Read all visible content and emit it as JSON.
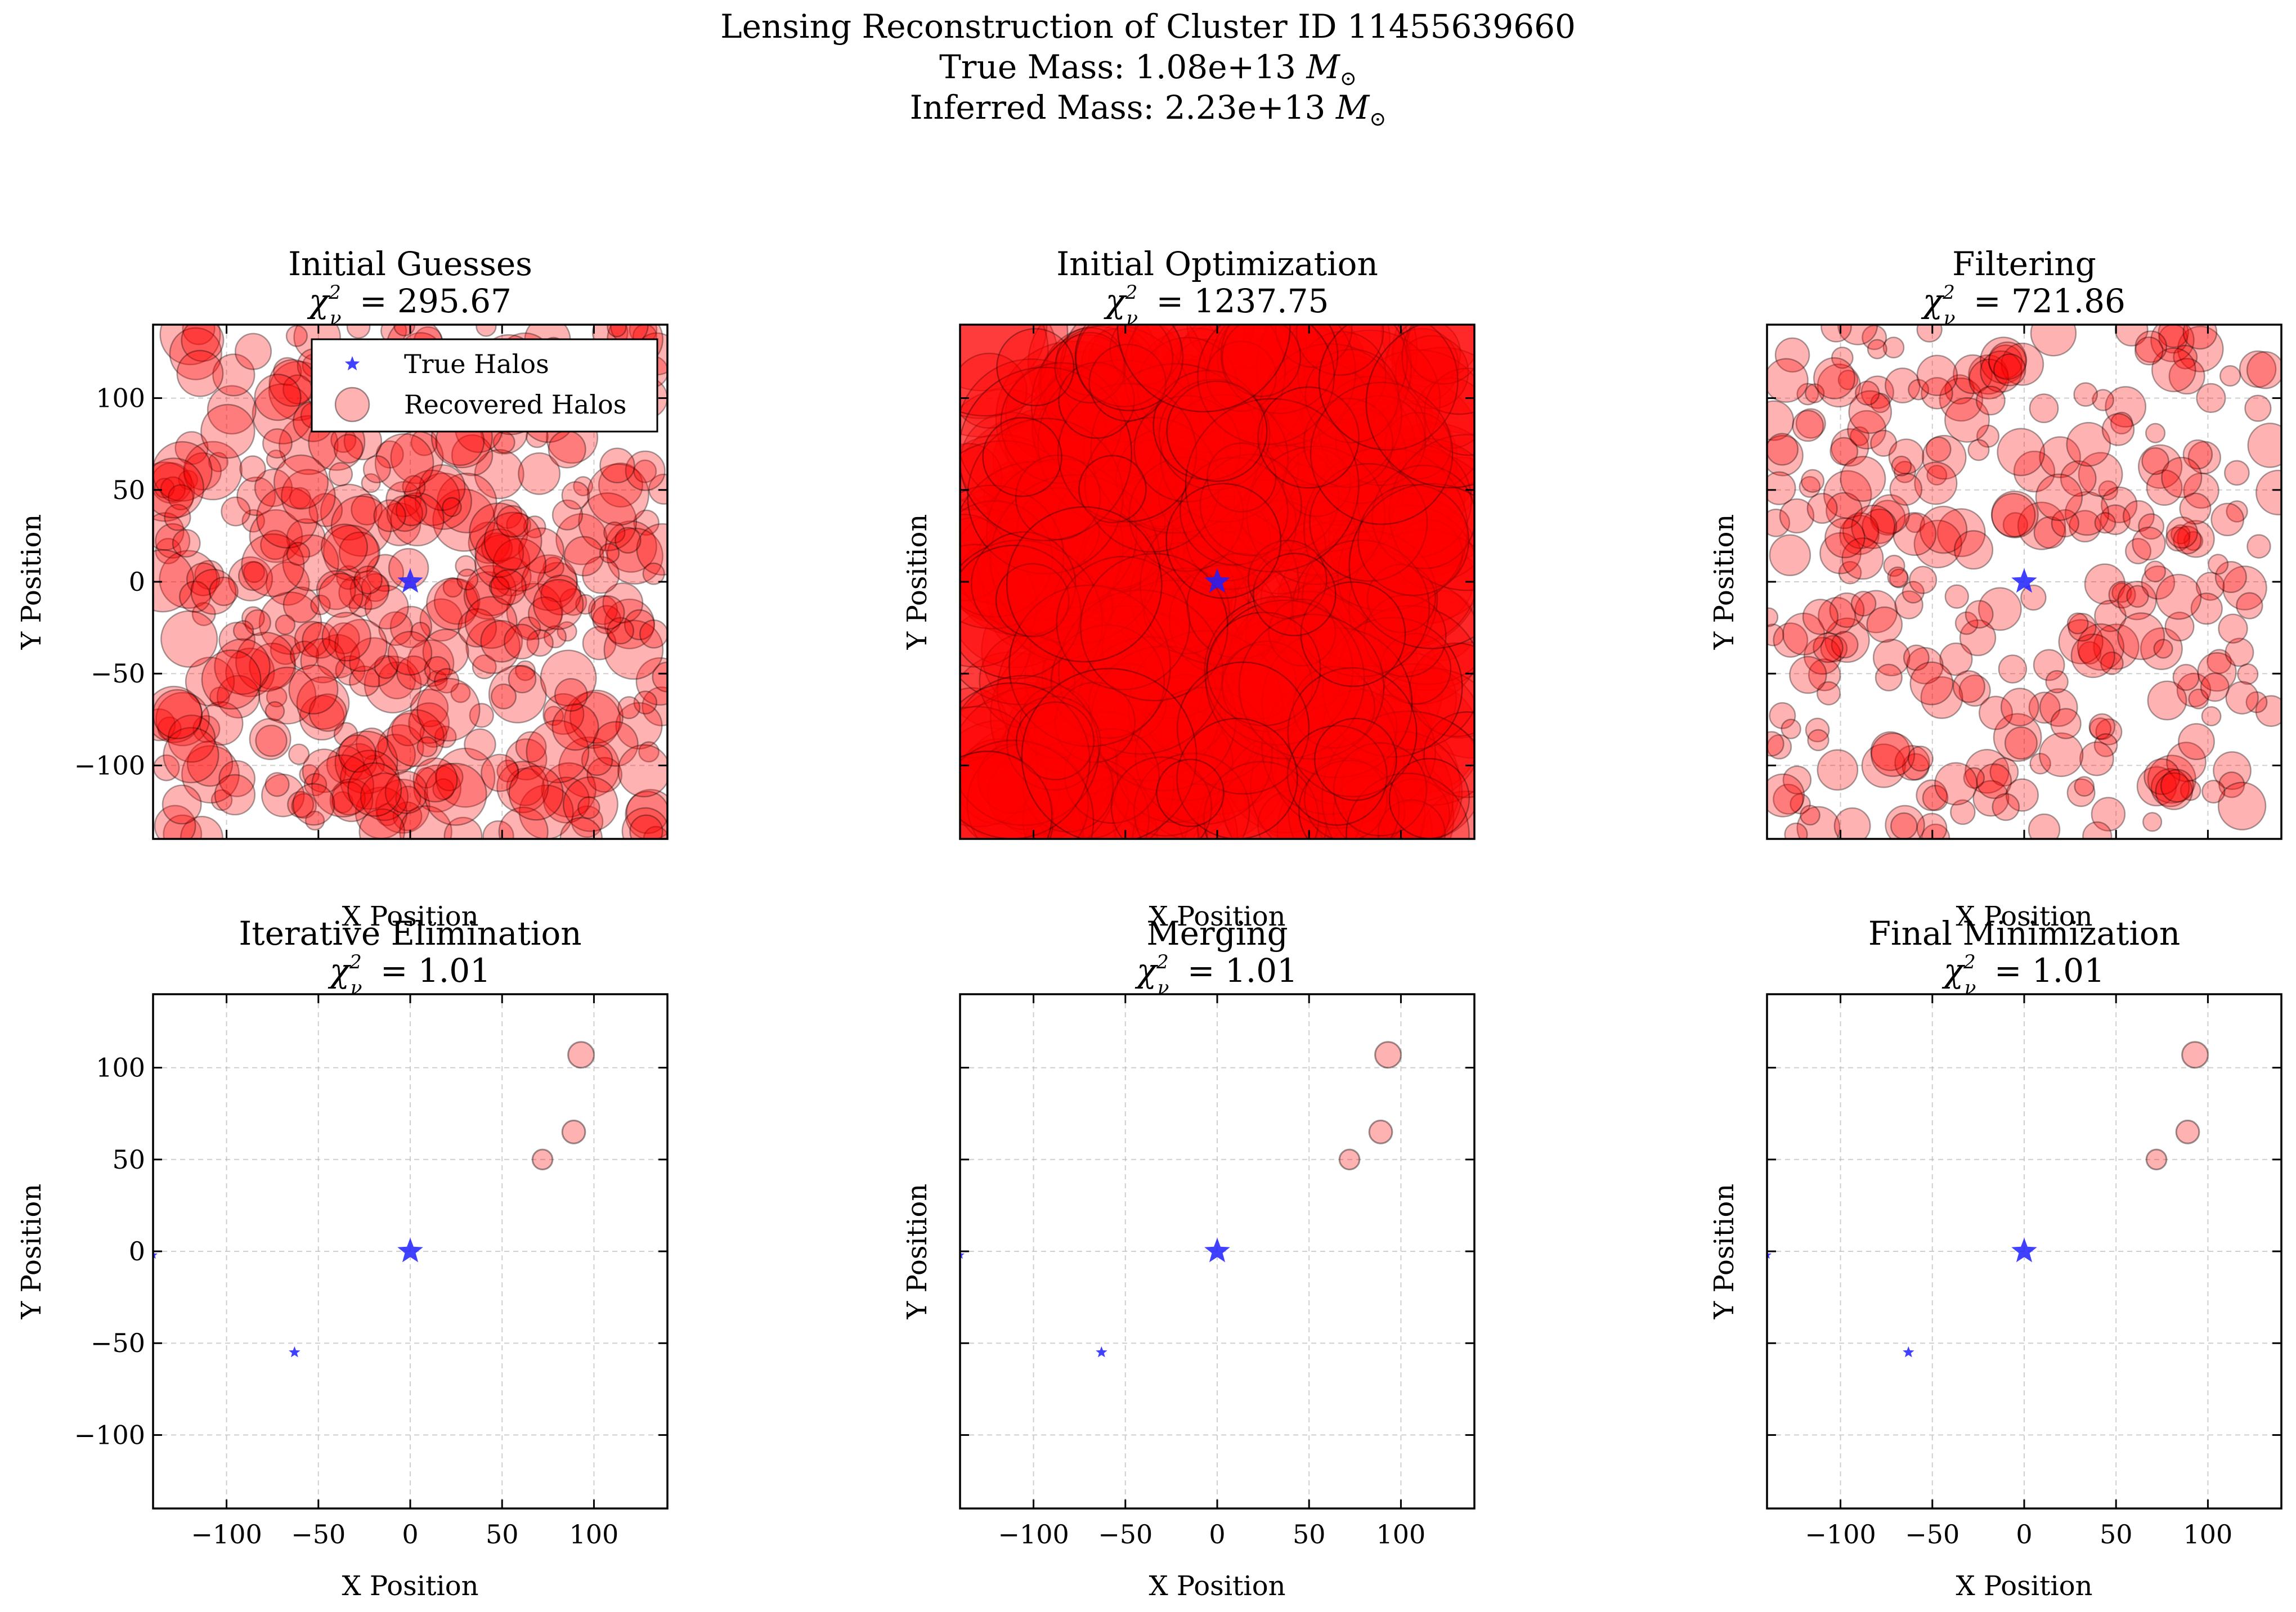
{
  "suptitle": {
    "line1": "Lensing Reconstruction of Cluster ID 11455639660",
    "line2_prefix": "True Mass: 1.08e+13",
    "line3_prefix": "Inferred Mass: 2.23e+13",
    "unit_symbol": "M",
    "unit_subscript": "⊙"
  },
  "colors": {
    "true_halo": "#1f1fff",
    "recovered_halo": "#ff0000",
    "grid": "#b0b0b0"
  },
  "chart_data": [
    {
      "type": "scatter",
      "title": "Initial Guesses",
      "chi2_symbol": "χ",
      "chi2_sub": "ν",
      "chi2_sup": "2",
      "chi2_value": "= 295.67",
      "xlabel": "X Position",
      "ylabel": "Y Position",
      "xlim": [
        -140,
        140
      ],
      "ylim": [
        -140,
        140
      ],
      "xticks": [
        -100,
        -50,
        0,
        50,
        100
      ],
      "yticks": [
        -100,
        -50,
        0,
        50,
        100
      ],
      "show_xtick_labels": false,
      "show_yticks_labels": true,
      "grid": true,
      "legend": {
        "placement": "upper right",
        "entries": [
          "True Halos",
          "Recovered Halos"
        ]
      },
      "true_halos": [
        {
          "x": 0,
          "y": 0
        }
      ],
      "recovered_halos": {
        "count": 420,
        "density": "dense",
        "size_range": [
          5,
          17
        ],
        "seed": 11
      }
    },
    {
      "type": "scatter",
      "title": "Initial Optimization",
      "chi2_symbol": "χ",
      "chi2_sub": "ν",
      "chi2_sup": "2",
      "chi2_value": "= 1237.75",
      "xlabel": "X Position",
      "ylabel": "Y Position",
      "xlim": [
        -140,
        140
      ],
      "ylim": [
        -140,
        140
      ],
      "xticks": [
        -100,
        -50,
        0,
        50,
        100
      ],
      "yticks": [
        -100,
        -50,
        0,
        50,
        100
      ],
      "show_xtick_labels": false,
      "show_yticks_labels": false,
      "grid": true,
      "true_halos": [
        {
          "x": 0,
          "y": 0
        }
      ],
      "recovered_halos": {
        "count": 420,
        "density": "saturated",
        "size_range": [
          18,
          48
        ],
        "seed": 23
      }
    },
    {
      "type": "scatter",
      "title": "Filtering",
      "chi2_symbol": "χ",
      "chi2_sub": "ν",
      "chi2_sup": "2",
      "chi2_value": "= 721.86",
      "xlabel": "X Position",
      "ylabel": "Y Position",
      "xlim": [
        -140,
        140
      ],
      "ylim": [
        -140,
        140
      ],
      "xticks": [
        -100,
        -50,
        0,
        50,
        100
      ],
      "yticks": [
        -100,
        -50,
        0,
        50,
        100
      ],
      "show_xtick_labels": false,
      "show_yticks_labels": false,
      "grid": true,
      "true_halos": [
        {
          "x": 0,
          "y": 0
        }
      ],
      "recovered_halos": {
        "count": 300,
        "density": "dense",
        "size_range": [
          5,
          13
        ],
        "seed": 37
      }
    },
    {
      "type": "scatter",
      "title": "Iterative Elimination",
      "chi2_symbol": "χ",
      "chi2_sub": "ν",
      "chi2_sup": "2",
      "chi2_value": "= 1.01",
      "xlabel": "X Position",
      "ylabel": "Y Position",
      "xlim": [
        -140,
        140
      ],
      "ylim": [
        -140,
        140
      ],
      "xticks": [
        -100,
        -50,
        0,
        50,
        100
      ],
      "yticks": [
        -100,
        -50,
        0,
        50,
        100
      ],
      "show_xtick_labels": true,
      "show_yticks_labels": true,
      "grid": true,
      "true_halos": [
        {
          "x": 0,
          "y": 0,
          "s": 1.0
        },
        {
          "x": -63,
          "y": -55,
          "s": 0.45
        },
        {
          "x": -140,
          "y": -2,
          "s": 0.35
        }
      ],
      "recovered_halos": [
        {
          "x": 93,
          "y": 107,
          "m": 1.0
        },
        {
          "x": 89,
          "y": 65,
          "m": 0.8
        },
        {
          "x": 72,
          "y": 50,
          "m": 0.6
        }
      ]
    },
    {
      "type": "scatter",
      "title": "Merging",
      "chi2_symbol": "χ",
      "chi2_sub": "ν",
      "chi2_sup": "2",
      "chi2_value": "= 1.01",
      "xlabel": "X Position",
      "ylabel": "Y Position",
      "xlim": [
        -140,
        140
      ],
      "ylim": [
        -140,
        140
      ],
      "xticks": [
        -100,
        -50,
        0,
        50,
        100
      ],
      "yticks": [
        -100,
        -50,
        0,
        50,
        100
      ],
      "show_xtick_labels": true,
      "show_yticks_labels": false,
      "grid": true,
      "true_halos": [
        {
          "x": 0,
          "y": 0,
          "s": 1.0
        },
        {
          "x": -63,
          "y": -55,
          "s": 0.45
        },
        {
          "x": -140,
          "y": -2,
          "s": 0.35
        }
      ],
      "recovered_halos": [
        {
          "x": 93,
          "y": 107,
          "m": 1.0
        },
        {
          "x": 89,
          "y": 65,
          "m": 0.8
        },
        {
          "x": 72,
          "y": 50,
          "m": 0.6
        }
      ]
    },
    {
      "type": "scatter",
      "title": "Final Minimization",
      "chi2_symbol": "χ",
      "chi2_sub": "ν",
      "chi2_sup": "2",
      "chi2_value": "= 1.01",
      "xlabel": "X Position",
      "ylabel": "Y Position",
      "xlim": [
        -140,
        140
      ],
      "ylim": [
        -140,
        140
      ],
      "xticks": [
        -100,
        -50,
        0,
        50,
        100
      ],
      "yticks": [
        -100,
        -50,
        0,
        50,
        100
      ],
      "show_xtick_labels": true,
      "show_yticks_labels": false,
      "grid": true,
      "true_halos": [
        {
          "x": 0,
          "y": 0,
          "s": 1.0
        },
        {
          "x": -63,
          "y": -55,
          "s": 0.45
        },
        {
          "x": -140,
          "y": -2,
          "s": 0.35
        }
      ],
      "recovered_halos": [
        {
          "x": 93,
          "y": 107,
          "m": 1.0
        },
        {
          "x": 89,
          "y": 65,
          "m": 0.8
        },
        {
          "x": 72,
          "y": 50,
          "m": 0.6
        }
      ]
    }
  ]
}
